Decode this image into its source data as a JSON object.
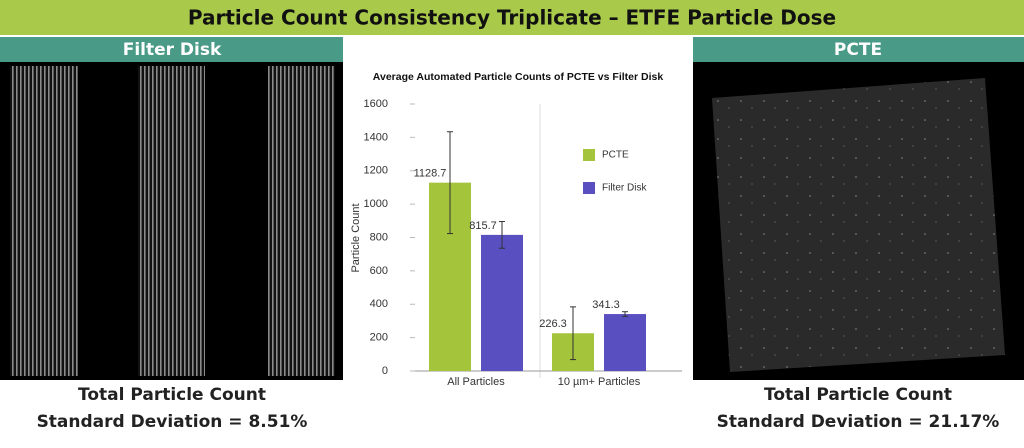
{
  "header": {
    "title": "Particle Count Consistency Triplicate – ETFE Particle Dose"
  },
  "panels": [
    {
      "title": "Filter Disk",
      "caption": [
        "Total Particle Count",
        "Standard Deviation = 8.51%"
      ]
    },
    {
      "title": "PCTE",
      "caption": [
        "Total Particle Count",
        "Standard Deviation = 21.17%"
      ]
    }
  ],
  "chart_data": {
    "type": "bar",
    "title": "Average Automated Particle Counts of PCTE vs Filter Disk",
    "y_label": "Particle Count",
    "categories": [
      "All Particles",
      "10 µm+ Particles"
    ],
    "series": [
      {
        "name": "PCTE",
        "color": "#a4c43c",
        "values": [
          1128.7,
          226.3
        ],
        "errors": [
          305,
          158
        ]
      },
      {
        "name": "Filter Disk",
        "color": "#5a4fc0",
        "values": [
          815.7,
          341.3
        ],
        "errors": [
          80,
          14
        ]
      }
    ],
    "ylim": [
      0,
      1600
    ],
    "yticks": [
      0,
      200,
      400,
      600,
      800,
      1000,
      1200,
      1400,
      1600
    ]
  }
}
